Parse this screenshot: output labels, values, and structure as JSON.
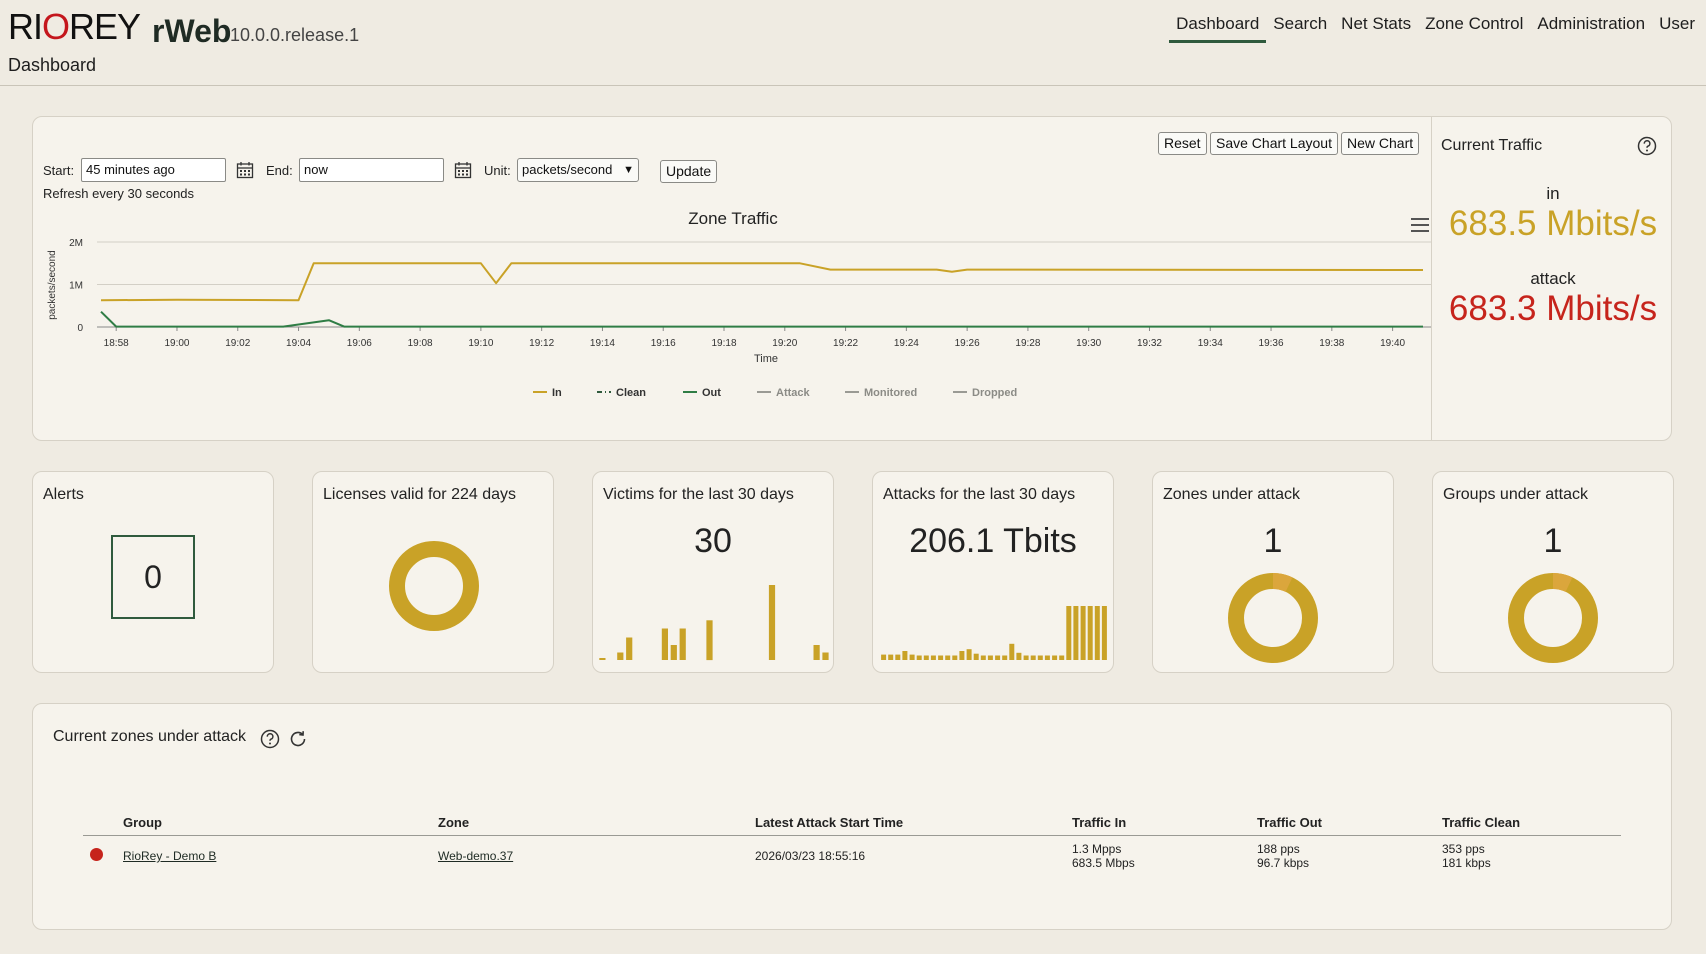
{
  "header": {
    "logo_part1": "RI",
    "logo_part2": "O",
    "logo_part3": "REY",
    "app_name": "rWeb",
    "version": "10.0.0.release.1",
    "page_label": "Dashboard",
    "nav": [
      "Dashboard",
      "Search",
      "Net Stats",
      "Zone Control",
      "Administration",
      "User"
    ],
    "active_nav": "Dashboard"
  },
  "chart_panel": {
    "buttons": {
      "reset": "Reset",
      "save_layout": "Save Chart Layout",
      "new_chart": "New Chart"
    },
    "start_label": "Start:",
    "start_value": "45 minutes ago",
    "end_label": "End:",
    "end_value": "now",
    "unit_label": "Unit:",
    "unit_value": "packets/second",
    "update_button": "Update",
    "refresh_note": "Refresh every 30 seconds"
  },
  "chart_data": {
    "type": "line",
    "title": "Zone Traffic",
    "xlabel": "Time",
    "ylabel": "packets/second",
    "y_ticks": [
      "2M",
      "1M",
      "0"
    ],
    "ylim": [
      0,
      2000000
    ],
    "x_ticks": [
      "18:58",
      "19:00",
      "19:02",
      "19:04",
      "19:06",
      "19:08",
      "19:10",
      "19:12",
      "19:14",
      "19:16",
      "19:18",
      "19:20",
      "19:22",
      "19:24",
      "19:26",
      "19:28",
      "19:30",
      "19:32",
      "19:34",
      "19:36",
      "19:38",
      "19:40"
    ],
    "x_minutes_range": [
      "18:57.5",
      "19:41"
    ],
    "series": [
      {
        "name": "In",
        "color": "#c9a227",
        "dash": "solid",
        "points": [
          [
            "18:57.5",
            630000
          ],
          [
            "19:00",
            640000
          ],
          [
            "19:04",
            630000
          ],
          [
            "19:04.5",
            1500000
          ],
          [
            "19:10",
            1500000
          ],
          [
            "19:10.5",
            1030000
          ],
          [
            "19:11",
            1500000
          ],
          [
            "19:20.5",
            1500000
          ],
          [
            "19:21.5",
            1350000
          ],
          [
            "19:25",
            1350000
          ],
          [
            "19:25.5",
            1300000
          ],
          [
            "19:26",
            1350000
          ],
          [
            "19:41",
            1340000
          ]
        ]
      },
      {
        "name": "Clean",
        "color": "#2f5a3d",
        "dash": "dashdot",
        "points": []
      },
      {
        "name": "Out",
        "color": "#2f7d45",
        "dash": "solid",
        "points": [
          [
            "18:57.5",
            360000
          ],
          [
            "18:58",
            10000
          ],
          [
            "19:03.5",
            10000
          ],
          [
            "19:05",
            160000
          ],
          [
            "19:05.5",
            10000
          ],
          [
            "19:41",
            10000
          ]
        ]
      },
      {
        "name": "Attack",
        "color": "#9a9a94",
        "dash": "solid",
        "points": []
      },
      {
        "name": "Monitored",
        "color": "#9a9a94",
        "dash": "solid",
        "points": []
      },
      {
        "name": "Dropped",
        "color": "#9a9a94",
        "dash": "solid",
        "points": []
      }
    ],
    "legend": [
      "In",
      "Clean",
      "Out",
      "Attack",
      "Monitored",
      "Dropped"
    ],
    "legend_placement": "bottom-center",
    "grid": true
  },
  "current_traffic": {
    "title": "Current Traffic",
    "in_label": "in",
    "in_value": "683.5 Mbits/s",
    "attack_label": "attack",
    "attack_value": "683.3 Mbits/s"
  },
  "stats": {
    "alerts": {
      "title": "Alerts",
      "value": "0"
    },
    "licenses": {
      "title": "Licenses valid for 224 days"
    },
    "victims": {
      "title": "Victims for the last 30 days",
      "value": "30",
      "bars": [
        0.02,
        0,
        0.1,
        0.3,
        0,
        0,
        0,
        0.42,
        0.2,
        0.42,
        0,
        0,
        0.53,
        0,
        0,
        0,
        0,
        0,
        0,
        1.0,
        0,
        0,
        0,
        0,
        0.2,
        0.1
      ]
    },
    "attacks": {
      "title": "Attacks for the last 30 days",
      "value": "206.1 Tbits",
      "bars": [
        0.06,
        0.06,
        0.06,
        0.1,
        0.06,
        0.05,
        0.05,
        0.05,
        0.05,
        0.05,
        0.05,
        0.1,
        0.12,
        0.07,
        0.05,
        0.05,
        0.05,
        0.05,
        0.18,
        0.08,
        0.05,
        0.05,
        0.05,
        0.05,
        0.05,
        0.05,
        0.6,
        0.6,
        0.6,
        0.6,
        0.6,
        0.6
      ]
    },
    "zones": {
      "title": "Zones under attack",
      "value": "1"
    },
    "groups": {
      "title": "Groups under attack",
      "value": "1"
    }
  },
  "zones_table": {
    "title": "Current zones under attack",
    "columns": [
      "Group",
      "Zone",
      "Latest Attack Start Time",
      "Traffic In",
      "Traffic Out",
      "Traffic Clean"
    ],
    "rows": [
      {
        "group": "RioRey - Demo B",
        "zone": "Web-demo.37",
        "start": "2026/03/23 18:55:16",
        "in1": "1.3 Mpps",
        "in2": "683.5 Mbps",
        "out1": "188 pps",
        "out2": "96.7 kbps",
        "clean1": "353 pps",
        "clean2": "181 kbps",
        "status_color": "#c6241c"
      }
    ]
  }
}
